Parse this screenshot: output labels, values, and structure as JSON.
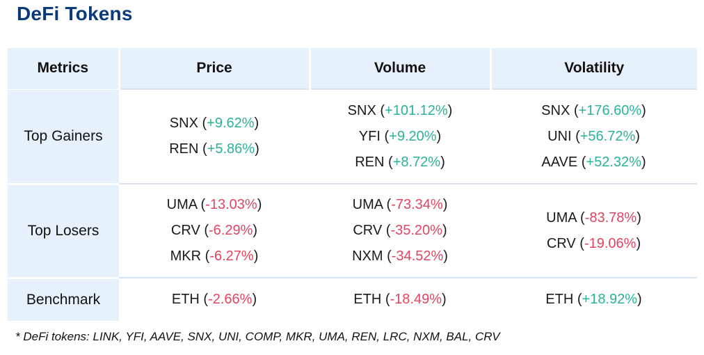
{
  "title": "DeFi Tokens",
  "colors": {
    "title": "#0b3a7a",
    "header_bg": "#e6f1fb",
    "positive": "#2ab39a",
    "negative": "#e0455f"
  },
  "columns": [
    "Metrics",
    "Price",
    "Volume",
    "Volatility"
  ],
  "rows": [
    {
      "metric": "Top Gainers",
      "cells": [
        [
          {
            "token": "SNX",
            "change": "+9.62%",
            "sign": "pos"
          },
          {
            "token": "REN",
            "change": "+5.86%",
            "sign": "pos"
          }
        ],
        [
          {
            "token": "SNX",
            "change": "+101.12%",
            "sign": "pos"
          },
          {
            "token": "YFI",
            "change": "+9.20%",
            "sign": "pos"
          },
          {
            "token": "REN",
            "change": "+8.72%",
            "sign": "pos"
          }
        ],
        [
          {
            "token": "SNX",
            "change": "+176.60%",
            "sign": "pos"
          },
          {
            "token": "UNI",
            "change": "+56.72%",
            "sign": "pos"
          },
          {
            "token": "AAVE",
            "change": "+52.32%",
            "sign": "pos"
          }
        ]
      ]
    },
    {
      "metric": "Top Losers",
      "cells": [
        [
          {
            "token": "UMA",
            "change": "-13.03%",
            "sign": "neg"
          },
          {
            "token": "CRV",
            "change": "-6.29%",
            "sign": "neg"
          },
          {
            "token": "MKR",
            "change": "-6.27%",
            "sign": "neg"
          }
        ],
        [
          {
            "token": "UMA",
            "change": "-73.34%",
            "sign": "neg"
          },
          {
            "token": "CRV",
            "change": "-35.20%",
            "sign": "neg"
          },
          {
            "token": "NXM",
            "change": "-34.52%",
            "sign": "neg"
          }
        ],
        [
          {
            "token": "UMA",
            "change": "-83.78%",
            "sign": "neg"
          },
          {
            "token": "CRV",
            "change": "-19.06%",
            "sign": "neg"
          }
        ]
      ]
    },
    {
      "metric": "Benchmark",
      "cells": [
        [
          {
            "token": "ETH",
            "change": "-2.66%",
            "sign": "neg"
          }
        ],
        [
          {
            "token": "ETH",
            "change": "-18.49%",
            "sign": "neg"
          }
        ],
        [
          {
            "token": "ETH",
            "change": "+18.92%",
            "sign": "pos"
          }
        ]
      ]
    }
  ],
  "footnote": "* DeFi tokens: LINK, YFI, AAVE, SNX, UNI, COMP, MKR, UMA, REN, LRC, NXM, BAL, CRV"
}
